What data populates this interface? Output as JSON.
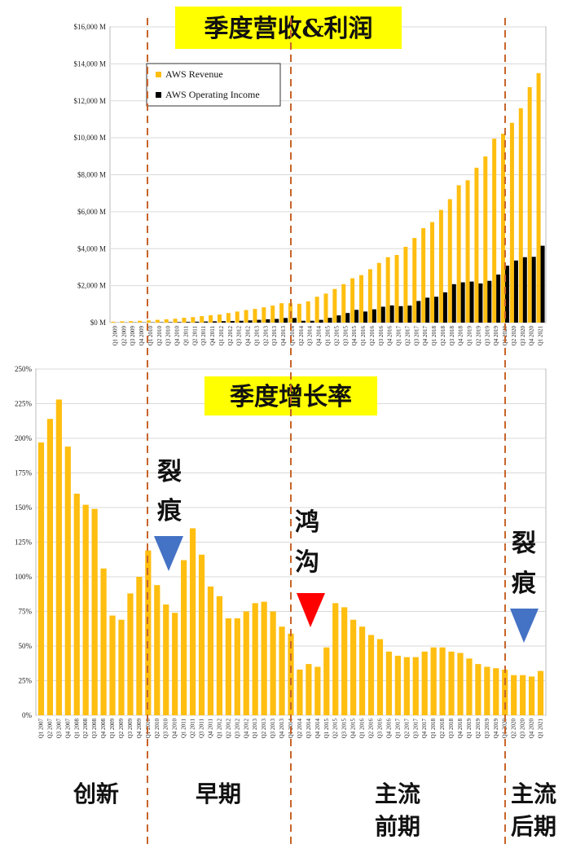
{
  "colors": {
    "revenue": "#FFBE10",
    "income": "#000000",
    "growth": "#FFBE10",
    "title_bg": "#FFFF00",
    "phase_line": "#C8642A",
    "arrow_blue": "#4472C4",
    "arrow_red": "#FF0000"
  },
  "chart_data": [
    {
      "type": "bar",
      "title": "季度营收&利润",
      "ylim": [
        0,
        16000
      ],
      "yticks": [
        "$0 M",
        "$2,000 M",
        "$4,000 M",
        "$6,000 M",
        "$8,000 M",
        "$10,000 M",
        "$12,000 M",
        "$14,000 M",
        "$16,000 M"
      ],
      "grid": true,
      "legend_placement": "top-left",
      "categories": [
        "Q1 2009",
        "Q2 2009",
        "Q3 2009",
        "Q4 2009",
        "Q1 2010",
        "Q2 2010",
        "Q3 2010",
        "Q4 2010",
        "Q1 2011",
        "Q2 2011",
        "Q3 2011",
        "Q4 2011",
        "Q1 2012",
        "Q2 2012",
        "Q3 2012",
        "Q4 2012",
        "Q1 2013",
        "Q2 2013",
        "Q3 2013",
        "Q4 2013",
        "Q1 2014",
        "Q2 2014",
        "Q3 2014",
        "Q4 2014",
        "Q1 2015",
        "Q2 2015",
        "Q3 2015",
        "Q4 2015",
        "Q1 2016",
        "Q2 2016",
        "Q3 2016",
        "Q4 2016",
        "Q1 2017",
        "Q2 2017",
        "Q3 2017",
        "Q4 2017",
        "Q1 2018",
        "Q2 2018",
        "Q3 2018",
        "Q4 2018",
        "Q1 2019",
        "Q2 2019",
        "Q3 2019",
        "Q4 2019",
        "Q1 2020",
        "Q2 2020",
        "Q3 2020",
        "Q4 2020",
        "Q1 2021"
      ],
      "series": [
        {
          "name": "AWS Revenue",
          "values": [
            50,
            70,
            80,
            100,
            120,
            150,
            180,
            210,
            260,
            300,
            350,
            400,
            440,
            520,
            600,
            680,
            740,
            830,
            920,
            1050,
            1050,
            1020,
            1150,
            1400,
            1570,
            1820,
            2080,
            2400,
            2570,
            2890,
            3230,
            3540,
            3660,
            4100,
            4580,
            5110,
            5440,
            6100,
            6680,
            7430,
            7700,
            8380,
            8990,
            9950,
            10220,
            10810,
            11600,
            12740,
            13500
          ]
        },
        {
          "name": "AWS Operating Income",
          "values": [
            5,
            8,
            10,
            12,
            15,
            20,
            25,
            30,
            40,
            50,
            60,
            70,
            80,
            90,
            100,
            120,
            150,
            180,
            200,
            250,
            250,
            100,
            100,
            150,
            260,
            390,
            520,
            690,
            600,
            720,
            860,
            930,
            890,
            920,
            1170,
            1350,
            1400,
            1640,
            2080,
            2180,
            2220,
            2120,
            2260,
            2600,
            3080,
            3360,
            3540,
            3560,
            4160
          ]
        }
      ]
    },
    {
      "type": "bar",
      "title": "季度增长率",
      "ylim": [
        0,
        250
      ],
      "yticks": [
        "0%",
        "25%",
        "50%",
        "75%",
        "100%",
        "125%",
        "150%",
        "175%",
        "200%",
        "225%",
        "250%"
      ],
      "grid": true,
      "categories": [
        "Q1 2007",
        "Q2 2007",
        "Q3 2007",
        "Q4 2007",
        "Q1 2008",
        "Q2 2008",
        "Q3 2008",
        "Q4 2008",
        "Q1 2009",
        "Q2 2009",
        "Q3 2009",
        "Q4 2009",
        "Q1 2010",
        "Q2 2010",
        "Q3 2010",
        "Q4 2010",
        "Q1 2011",
        "Q2 2011",
        "Q3 2011",
        "Q4 2011",
        "Q1 2012",
        "Q2 2012",
        "Q3 2012",
        "Q4 2012",
        "Q1 2013",
        "Q2 2013",
        "Q3 2013",
        "Q4 2013",
        "Q1 2014",
        "Q2 2014",
        "Q3 2014",
        "Q4 2014",
        "Q1 2015",
        "Q2 2015",
        "Q3 2015",
        "Q4 2015",
        "Q1 2016",
        "Q2 2016",
        "Q3 2016",
        "Q4 2016",
        "Q1 2017",
        "Q2 2017",
        "Q3 2017",
        "Q4 2017",
        "Q1 2018",
        "Q2 2018",
        "Q3 2018",
        "Q4 2018",
        "Q1 2019",
        "Q2 2019",
        "Q3 2019",
        "Q4 2019",
        "Q1 2020",
        "Q2 2020",
        "Q3 2020",
        "Q4 2020",
        "Q1 2021"
      ],
      "series": [
        {
          "name": "",
          "values": [
            197,
            214,
            228,
            194,
            160,
            152,
            149,
            106,
            72,
            69,
            88,
            100,
            119,
            94,
            80,
            74,
            112,
            135,
            116,
            93,
            86,
            70,
            70,
            75,
            81,
            82,
            75,
            64,
            59,
            33,
            37,
            35,
            49,
            81,
            78,
            69,
            64,
            58,
            55,
            46,
            43,
            42,
            42,
            46,
            49,
            49,
            46,
            45,
            41,
            37,
            35,
            34,
            33,
            29,
            29,
            28,
            32
          ]
        }
      ]
    }
  ],
  "annotations": {
    "crack1": [
      "裂",
      "痕"
    ],
    "gap": [
      "鸿",
      "沟"
    ],
    "crack2": [
      "裂",
      "痕"
    ]
  },
  "phases": {
    "innovation": "创新",
    "early": "早期",
    "mainstream_early": [
      "主流",
      "前期"
    ],
    "mainstream_late": [
      "主流",
      "后期"
    ]
  }
}
